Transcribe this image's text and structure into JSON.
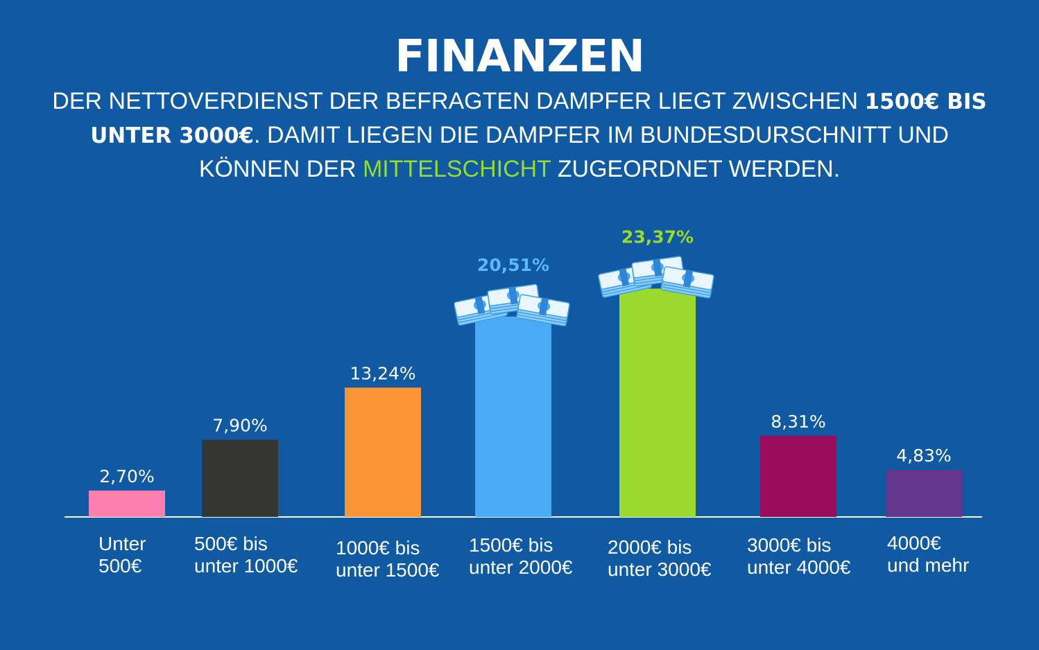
{
  "header": {
    "title": "FINANZEN",
    "subtitle_parts": [
      "DER NETTOVERDIENST DER BEFRAGTEN DAMPFER LIEGT ZWISCHEN ",
      "1500€ BIS UNTER 3000€",
      ". DAMIT LIEGEN DIE DAMPFER IM BUNDESDURSCHNITT UND KÖNNEN DER ",
      "MITTELSCHICHT",
      " ZUGEORDNET WERDEN."
    ]
  },
  "colors": {
    "background": "#0f5aa3",
    "accent_green": "#9ad92e",
    "light_blue": "#4aaaf5"
  },
  "chart_data": {
    "type": "bar",
    "title": "",
    "xlabel": "",
    "ylabel": "",
    "ylim": [
      0,
      25
    ],
    "grid": false,
    "legend": "none",
    "categories": [
      [
        "Unter",
        "500€"
      ],
      [
        "500€ bis",
        "unter 1000€"
      ],
      [
        "1000€ bis",
        "unter 1500€"
      ],
      [
        "1500€ bis",
        "unter 2000€"
      ],
      [
        "2000€ bis",
        "unter 3000€"
      ],
      [
        "3000€ bis",
        "unter 4000€"
      ],
      [
        "4000€",
        "und mehr"
      ]
    ],
    "values": [
      2.7,
      7.9,
      13.24,
      20.51,
      23.37,
      8.31,
      4.83
    ],
    "value_labels": [
      "2,70%",
      "7,90%",
      "13,24%",
      "20,51%",
      "23,37%",
      "8,31%",
      "4,83%"
    ],
    "colors": [
      "#fc7fb0",
      "#353532",
      "#fc9535",
      "#4aaaf5",
      "#9ad92e",
      "#9b0b5c",
      "#64368d"
    ],
    "label_colors": [
      "#ffffff",
      "#ffffff",
      "#ffffff",
      "#5cb8f7",
      "#9ad92e",
      "#ffffff",
      "#ffffff"
    ],
    "highlight": [
      false,
      false,
      false,
      true,
      true,
      false,
      false
    ],
    "money_icon": [
      false,
      false,
      false,
      true,
      true,
      false,
      false
    ]
  }
}
